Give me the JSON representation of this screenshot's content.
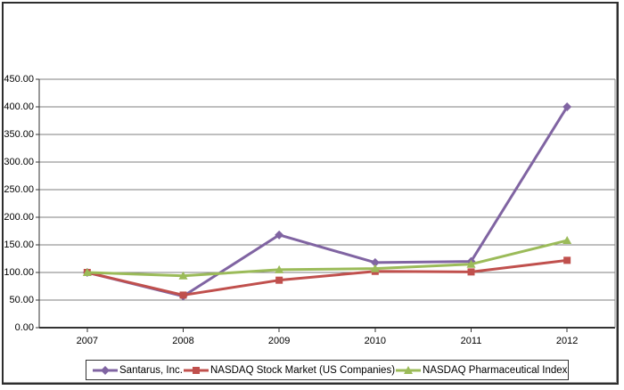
{
  "chart_data": {
    "type": "line",
    "title": "",
    "categories": [
      "2007",
      "2008",
      "2009",
      "2010",
      "2011",
      "2012"
    ],
    "y_axis": {
      "min": 0,
      "max": 450,
      "step": 50,
      "tick_labels": [
        "450.00",
        "400.00",
        "350.00",
        "300.00",
        "250.00",
        "200.00",
        "150.00",
        "100.00",
        "50.00",
        "0.00"
      ]
    },
    "grid": "horizontal",
    "legend_position": "bottom",
    "series": [
      {
        "name": "Santarus, Inc.",
        "color": "#8064A2",
        "marker": "diamond",
        "values": [
          100,
          57,
          168,
          118,
          120,
          400
        ]
      },
      {
        "name": "NASDAQ Stock Market (US Companies)",
        "color": "#C0504D",
        "marker": "square",
        "values": [
          100,
          59,
          86,
          102,
          101,
          122
        ]
      },
      {
        "name": "NASDAQ Pharmaceutical Index",
        "color": "#9BBB59",
        "marker": "triangle",
        "values": [
          100,
          94,
          105,
          107,
          115,
          158
        ]
      }
    ],
    "colors": {
      "gridline": "#7f7f7f",
      "axis": "#333333",
      "plot_right_edge": "#8c8c8c"
    }
  }
}
